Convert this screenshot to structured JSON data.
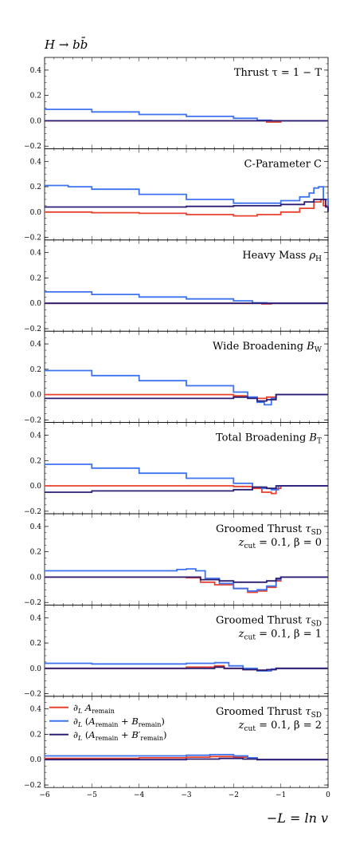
{
  "figure": {
    "process_label": "H → bb̄",
    "x_axis_label": "−L = ln v"
  },
  "chart_data": {
    "type": "line",
    "x_range": [
      -6,
      0
    ],
    "x_ticks": [
      "−6",
      "−5",
      "−4",
      "−3",
      "−2",
      "−1",
      "0"
    ],
    "y_range": [
      -0.22,
      0.5
    ],
    "y_ticks": [
      "0.4",
      "0.2",
      "0.0",
      "−0.2"
    ],
    "grid": false,
    "legend_position": "inside bottom panel, top-left",
    "series_styles": [
      {
        "id": "a",
        "color": "#e8412c"
      },
      {
        "id": "b",
        "color": "#3d72f0"
      },
      {
        "id": "c",
        "color": "#2b1d73"
      }
    ],
    "legend": [
      {
        "series": "a",
        "label": "∂L Aremain"
      },
      {
        "series": "b",
        "label": "∂L (Aremain + Bremain)"
      },
      {
        "series": "c",
        "label": "∂L (Aremain + B′remain)"
      }
    ],
    "panels": [
      {
        "title": [
          "Thrust τ = 1 − T"
        ],
        "series": {
          "a": [
            [
              -6,
              0.0
            ],
            [
              -3,
              0.0
            ],
            [
              -1.6,
              0.0
            ],
            [
              -1.3,
              -0.01
            ],
            [
              -1.0,
              0.0
            ],
            [
              0,
              0.0
            ]
          ],
          "b": [
            [
              -6,
              0.09
            ],
            [
              -5,
              0.07
            ],
            [
              -4,
              0.05
            ],
            [
              -3,
              0.035
            ],
            [
              -2,
              0.02
            ],
            [
              -1.5,
              0.005
            ],
            [
              -1.2,
              0.0
            ],
            [
              0,
              0.0
            ]
          ],
          "c": [
            [
              -6,
              0.0
            ],
            [
              -3,
              0.0
            ],
            [
              -1.5,
              0.0
            ],
            [
              -1.2,
              0.0
            ],
            [
              0,
              0.0
            ]
          ]
        }
      },
      {
        "title": [
          "C-Parameter C"
        ],
        "series": {
          "a": [
            [
              -6,
              0.0
            ],
            [
              -5,
              -0.005
            ],
            [
              -4,
              -0.01
            ],
            [
              -3,
              -0.02
            ],
            [
              -2,
              -0.03
            ],
            [
              -1.5,
              -0.02
            ],
            [
              -1.0,
              0.0
            ],
            [
              -0.6,
              0.03
            ],
            [
              -0.3,
              0.08
            ],
            [
              -0.15,
              0.1
            ],
            [
              -0.1,
              0.05
            ],
            [
              0,
              0.0
            ]
          ],
          "b": [
            [
              -6,
              0.21
            ],
            [
              -5.5,
              0.2
            ],
            [
              -5,
              0.18
            ],
            [
              -4,
              0.14
            ],
            [
              -3,
              0.1
            ],
            [
              -2,
              0.07
            ],
            [
              -1.5,
              0.07
            ],
            [
              -1.0,
              0.09
            ],
            [
              -0.6,
              0.12
            ],
            [
              -0.4,
              0.15
            ],
            [
              -0.3,
              0.19
            ],
            [
              -0.2,
              0.2
            ],
            [
              -0.1,
              0.1
            ],
            [
              0,
              0.0
            ]
          ],
          "c": [
            [
              -6,
              0.04
            ],
            [
              -5,
              0.04
            ],
            [
              -4,
              0.04
            ],
            [
              -3,
              0.045
            ],
            [
              -2,
              0.05
            ],
            [
              -1.5,
              0.05
            ],
            [
              -1.0,
              0.06
            ],
            [
              -0.5,
              0.08
            ],
            [
              -0.3,
              0.1
            ],
            [
              -0.15,
              0.1
            ],
            [
              -0.05,
              0.04
            ],
            [
              0,
              0.0
            ]
          ]
        }
      },
      {
        "title": [
          "Heavy Mass ρH"
        ],
        "series": {
          "a": [
            [
              -6,
              0.0
            ],
            [
              -2,
              0.0
            ],
            [
              -1.6,
              0.0
            ],
            [
              -1.4,
              -0.005
            ],
            [
              -1.2,
              0.0
            ],
            [
              0,
              0.0
            ]
          ],
          "b": [
            [
              -6,
              0.09
            ],
            [
              -5,
              0.07
            ],
            [
              -4,
              0.05
            ],
            [
              -3,
              0.035
            ],
            [
              -2,
              0.02
            ],
            [
              -1.6,
              0.005
            ],
            [
              -1.3,
              0.0
            ],
            [
              0,
              0.0
            ]
          ],
          "c": [
            [
              -6,
              0.0
            ],
            [
              -2,
              0.0
            ],
            [
              -1.4,
              0.0
            ],
            [
              0,
              0.0
            ]
          ]
        }
      },
      {
        "title": [
          "Wide Broadening BW"
        ],
        "series": {
          "a": [
            [
              -6,
              0.0
            ],
            [
              -4,
              0.0
            ],
            [
              -3,
              0.0
            ],
            [
              -2,
              -0.01
            ],
            [
              -1.7,
              -0.02
            ],
            [
              -1.5,
              -0.03
            ],
            [
              -1.3,
              -0.02
            ],
            [
              -1.1,
              0.0
            ],
            [
              0,
              0.0
            ]
          ],
          "b": [
            [
              -6,
              0.19
            ],
            [
              -5,
              0.15
            ],
            [
              -4,
              0.11
            ],
            [
              -3,
              0.07
            ],
            [
              -2,
              0.02
            ],
            [
              -1.7,
              -0.02
            ],
            [
              -1.5,
              -0.06
            ],
            [
              -1.35,
              -0.08
            ],
            [
              -1.2,
              -0.03
            ],
            [
              -1.1,
              0.0
            ],
            [
              0,
              0.0
            ]
          ],
          "c": [
            [
              -6,
              -0.03
            ],
            [
              -5,
              -0.03
            ],
            [
              -4,
              -0.03
            ],
            [
              -3,
              -0.03
            ],
            [
              -2,
              -0.02
            ],
            [
              -1.7,
              -0.03
            ],
            [
              -1.5,
              -0.05
            ],
            [
              -1.3,
              -0.04
            ],
            [
              -1.1,
              0.0
            ],
            [
              0,
              0.0
            ]
          ]
        }
      },
      {
        "title": [
          "Total Broadening BT"
        ],
        "series": {
          "a": [
            [
              -6,
              0.0
            ],
            [
              -4,
              0.0
            ],
            [
              -3,
              0.0
            ],
            [
              -2,
              -0.005
            ],
            [
              -1.6,
              -0.02
            ],
            [
              -1.4,
              -0.05
            ],
            [
              -1.2,
              -0.06
            ],
            [
              -1.1,
              -0.02
            ],
            [
              -1.0,
              0.0
            ],
            [
              0,
              0.0
            ]
          ],
          "b": [
            [
              -6,
              0.17
            ],
            [
              -5,
              0.14
            ],
            [
              -4,
              0.1
            ],
            [
              -3,
              0.06
            ],
            [
              -2,
              0.02
            ],
            [
              -1.6,
              -0.01
            ],
            [
              -1.4,
              -0.02
            ],
            [
              -1.2,
              -0.03
            ],
            [
              -1.05,
              0.0
            ],
            [
              0,
              0.0
            ]
          ],
          "c": [
            [
              -6,
              -0.05
            ],
            [
              -5.5,
              -0.05
            ],
            [
              -5,
              -0.04
            ],
            [
              -4,
              -0.04
            ],
            [
              -3,
              -0.04
            ],
            [
              -2,
              -0.03
            ],
            [
              -1.6,
              -0.01
            ],
            [
              -1.3,
              -0.02
            ],
            [
              -1.1,
              0.0
            ],
            [
              0,
              0.0
            ]
          ]
        }
      },
      {
        "title": [
          "Groomed Thrust τSD",
          "zcut = 0.1, β = 0"
        ],
        "series": {
          "a": [
            [
              -6,
              0.0
            ],
            [
              -4,
              0.0
            ],
            [
              -3,
              -0.005
            ],
            [
              -2.7,
              -0.04
            ],
            [
              -2.4,
              -0.06
            ],
            [
              -2,
              -0.09
            ],
            [
              -1.7,
              -0.12
            ],
            [
              -1.5,
              -0.11
            ],
            [
              -1.3,
              -0.08
            ],
            [
              -1.1,
              -0.03
            ],
            [
              -1.0,
              0.0
            ],
            [
              0,
              0.0
            ]
          ],
          "b": [
            [
              -6,
              0.05
            ],
            [
              -5,
              0.05
            ],
            [
              -4,
              0.05
            ],
            [
              -3.2,
              0.06
            ],
            [
              -3,
              0.065
            ],
            [
              -2.8,
              0.05
            ],
            [
              -2.6,
              -0.01
            ],
            [
              -2.3,
              -0.05
            ],
            [
              -2,
              -0.09
            ],
            [
              -1.7,
              -0.11
            ],
            [
              -1.5,
              -0.1
            ],
            [
              -1.3,
              -0.07
            ],
            [
              -1.1,
              -0.02
            ],
            [
              -1.0,
              0.0
            ],
            [
              0,
              0.0
            ]
          ],
          "c": [
            [
              -6,
              0.0
            ],
            [
              -4,
              0.0
            ],
            [
              -3,
              0.0
            ],
            [
              -2.7,
              -0.02
            ],
            [
              -2.3,
              -0.03
            ],
            [
              -2,
              -0.04
            ],
            [
              -1.6,
              -0.04
            ],
            [
              -1.3,
              -0.03
            ],
            [
              -1.1,
              -0.01
            ],
            [
              -1.0,
              0.0
            ],
            [
              0,
              0.0
            ]
          ]
        }
      },
      {
        "title": [
          "Groomed Thrust τSD",
          "zcut = 0.1, β = 1"
        ],
        "series": {
          "a": [
            [
              -6,
              0.0
            ],
            [
              -4,
              0.0
            ],
            [
              -3,
              0.01
            ],
            [
              -2.4,
              0.02
            ],
            [
              -2.2,
              0.0
            ],
            [
              -1.8,
              -0.01
            ],
            [
              -1.5,
              -0.015
            ],
            [
              -1.3,
              -0.01
            ],
            [
              -1.1,
              0.0
            ],
            [
              0,
              0.0
            ]
          ],
          "b": [
            [
              -6,
              0.04
            ],
            [
              -5,
              0.035
            ],
            [
              -4,
              0.035
            ],
            [
              -3,
              0.04
            ],
            [
              -2.4,
              0.045
            ],
            [
              -2.1,
              0.02
            ],
            [
              -1.8,
              0.0
            ],
            [
              -1.5,
              -0.02
            ],
            [
              -1.2,
              -0.005
            ],
            [
              -1.1,
              0.0
            ],
            [
              0,
              0.0
            ]
          ],
          "c": [
            [
              -6,
              0.0
            ],
            [
              -4,
              0.0
            ],
            [
              -3,
              0.0
            ],
            [
              -2.4,
              0.01
            ],
            [
              -2.2,
              0.0
            ],
            [
              -1.8,
              -0.01
            ],
            [
              -1.5,
              -0.015
            ],
            [
              -1.3,
              -0.01
            ],
            [
              -1.1,
              0.0
            ],
            [
              0,
              0.0
            ]
          ]
        }
      },
      {
        "title": [
          "Groomed Thrust τSD",
          "zcut = 0.1, β = 2"
        ],
        "series": {
          "a": [
            [
              -6,
              0.01
            ],
            [
              -5,
              0.01
            ],
            [
              -4,
              0.015
            ],
            [
              -3,
              0.02
            ],
            [
              -2.5,
              0.025
            ],
            [
              -2.0,
              0.02
            ],
            [
              -1.7,
              0.01
            ],
            [
              -1.5,
              0.0
            ],
            [
              0,
              0.0
            ]
          ],
          "b": [
            [
              -6,
              0.03
            ],
            [
              -5,
              0.03
            ],
            [
              -4,
              0.03
            ],
            [
              -3,
              0.035
            ],
            [
              -2.5,
              0.04
            ],
            [
              -2.0,
              0.03
            ],
            [
              -1.7,
              0.015
            ],
            [
              -1.5,
              0.0
            ],
            [
              0,
              0.0
            ]
          ],
          "c": [
            [
              -6,
              0.0
            ],
            [
              -4,
              0.0
            ],
            [
              -3,
              0.005
            ],
            [
              -2.3,
              0.01
            ],
            [
              -1.8,
              0.005
            ],
            [
              -1.5,
              0.0
            ],
            [
              0,
              0.0
            ]
          ]
        }
      }
    ]
  }
}
